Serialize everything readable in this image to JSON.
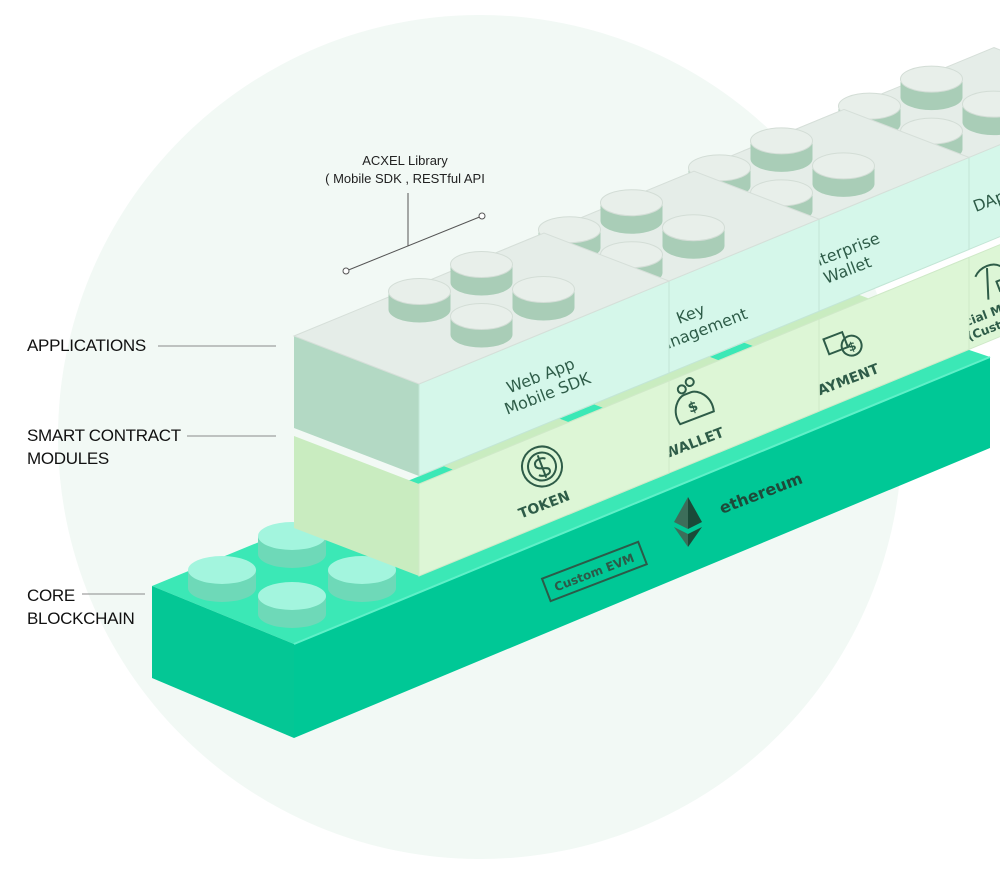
{
  "layer_labels": {
    "applications": "APPLICATIONS",
    "smart_contract": "SMART CONTRACT\nMODULES",
    "core": "CORE\nBLOCKCHAIN"
  },
  "library_note": {
    "line1": "ACXEL Library",
    "line2": "( Mobile SDK , RESTful API"
  },
  "app_blocks": [
    "Web App\nMobile SDK",
    "Key\nManagement",
    "Enterprise\nWallet",
    "DApp"
  ],
  "module_blocks": [
    "TOKEN",
    "WALLET",
    "PAYMENT",
    "Social Mining\n(Custom)"
  ],
  "module_icons": [
    "dollar-coin-icon",
    "money-bag-icon",
    "wallet-payment-icon",
    "pickaxe-icon"
  ],
  "base": {
    "ethereum_label": "ethereum",
    "evm_label": "Custom EVM"
  },
  "colors": {
    "base_top": "#3be8b6",
    "base_front": "#00c896",
    "app_top": "#e5ede8",
    "app_side": "#d5f7ea",
    "module_side": "#ddf6d6",
    "circle_bg": "#f2f9f5"
  }
}
